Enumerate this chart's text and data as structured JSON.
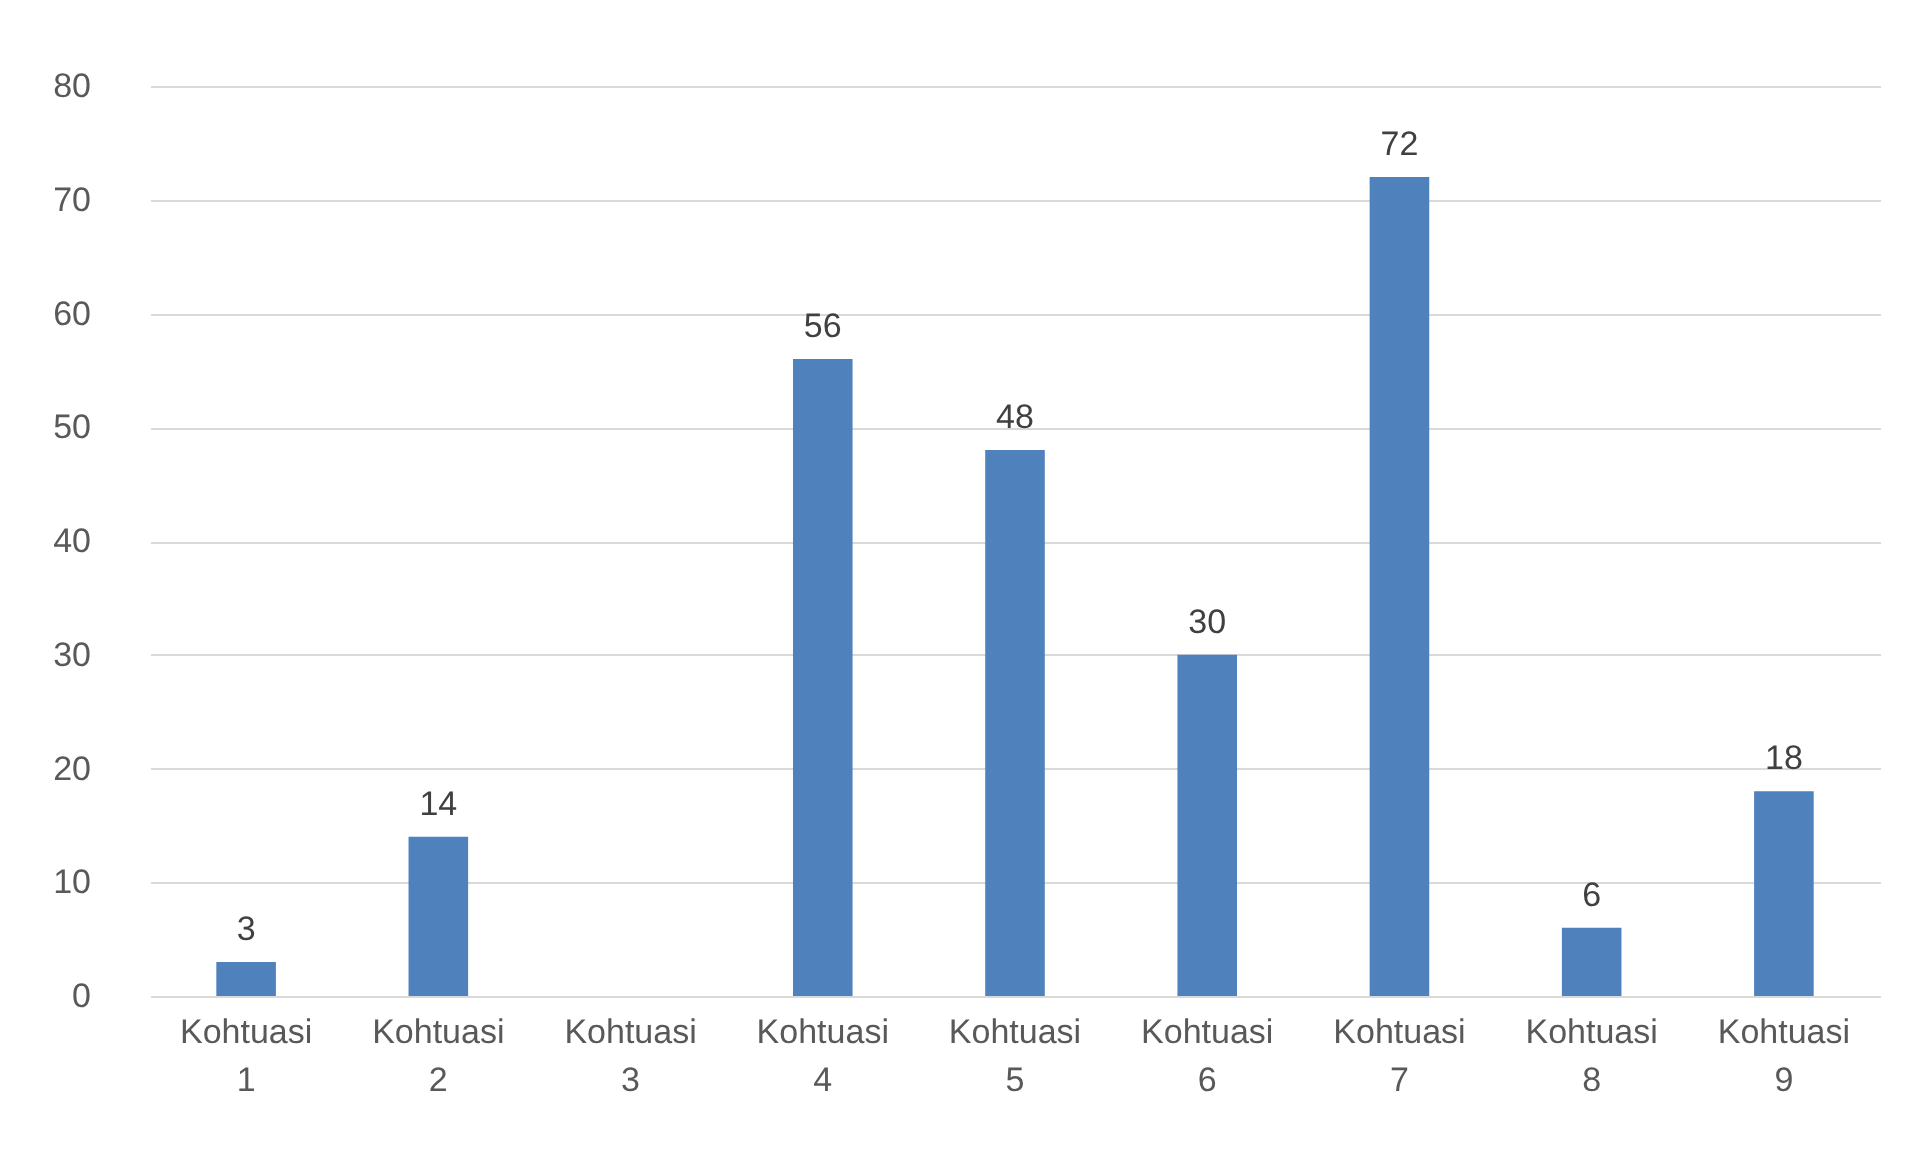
{
  "chart_data": {
    "type": "bar",
    "categories": [
      "Kohtuasi 1",
      "Kohtuasi 2",
      "Kohtuasi 3",
      "Kohtuasi 4",
      "Kohtuasi 5",
      "Kohtuasi 6",
      "Kohtuasi 7",
      "Kohtuasi 8",
      "Kohtuasi 9"
    ],
    "values": [
      3,
      14,
      null,
      56,
      48,
      30,
      72,
      6,
      18
    ],
    "color": "#4f81bd",
    "ylim": [
      0,
      80
    ],
    "yticks": [
      0,
      10,
      20,
      30,
      40,
      50,
      60,
      70,
      80
    ],
    "grid": "y",
    "data_labels": true
  }
}
